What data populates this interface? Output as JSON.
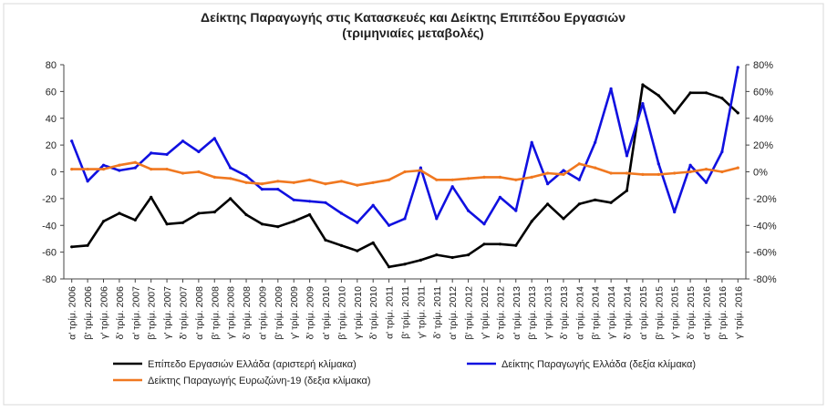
{
  "chart_data": {
    "type": "line",
    "title": "Δείκτης Παραγωγής στις Κατασκευές και Δείκτης Επιπέδου Εργασιών",
    "subtitle": "(τριμηνιαίες μεταβολές)",
    "categories": [
      "α' τρίμ. 2006",
      "β' τρίμ. 2006",
      "γ' τρίμ. 2006",
      "δ' τρίμ. 2006",
      "α' τρίμ. 2007",
      "β' τρίμ. 2007",
      "γ' τρίμ. 2007",
      "δ' τρίμ. 2007",
      "α' τρίμ. 2008",
      "β' τρίμ. 2008",
      "γ' τρίμ. 2008",
      "δ' τρίμ. 2008",
      "α' τρίμ. 2009",
      "β' τρίμ. 2009",
      "γ' τρίμ. 2009",
      "δ' τρίμ. 2009",
      "α' τρίμ. 2010",
      "β' τρίμ. 2010",
      "γ' τρίμ. 2010",
      "δ' τρίμ. 2010",
      "α' τρίμ. 2011",
      "β' τρίμ. 2011",
      "γ' τρίμ. 2011",
      "δ' τρίμ. 2011",
      "α' τρίμ. 2012",
      "β' τρίμ. 2012",
      "γ' τρίμ. 2012",
      "δ' τρίμ. 2012",
      "α' τρίμ. 2013",
      "β' τρίμ. 2013",
      "γ' τρίμ. 2013",
      "δ' τρίμ. 2013",
      "α' τρίμ. 2014",
      "β' τρίμ. 2014",
      "γ' τρίμ. 2014",
      "δ' τρίμ. 2014",
      "α' τρίμ. 2015",
      "β' τρίμ. 2015",
      "γ' τρίμ. 2015",
      "δ' τρίμ. 2015",
      "α' τρίμ. 2016",
      "β' τρίμ. 2016",
      "γ' τρίμ. 2016"
    ],
    "left_axis": {
      "range": [
        -80,
        80
      ],
      "ticks": [
        "80",
        "60",
        "40",
        "20",
        "0",
        "-20",
        "-40",
        "-60",
        "-80"
      ]
    },
    "right_axis": {
      "range": [
        -80,
        80
      ],
      "ticks": [
        "80%",
        "60%",
        "40%",
        "20%",
        "0%",
        "-20%",
        "-40%",
        "-60%",
        "-80%"
      ]
    },
    "grid": false,
    "legend_position": "bottom",
    "series": [
      {
        "name": "Επίπεδο Εργασιών Ελλάδα (αριστερή κλίμακα)",
        "axis": "left",
        "color": "#000000",
        "values": [
          -56,
          -55,
          -37,
          -31,
          -36,
          -19,
          -39,
          -38,
          -31,
          -30,
          -20,
          -32,
          -39,
          -41,
          -37,
          -32,
          -51,
          -55,
          -59,
          -53,
          -71,
          -69,
          -66,
          -62,
          -64,
          -62,
          -54,
          -54,
          -55,
          -37,
          -24,
          -35,
          -24,
          -21,
          -23,
          -14,
          65,
          57,
          44,
          59,
          59,
          55,
          44
        ]
      },
      {
        "name": "Δείκτης Παραγωγής Ελλάδα (δεξία κλίμακα)",
        "axis": "right",
        "color": "#1010e0",
        "values": [
          23,
          -7,
          5,
          1,
          3,
          14,
          13,
          23,
          15,
          25,
          3,
          -3,
          -13,
          -13,
          -21,
          -22,
          -23,
          -31,
          -38,
          -25,
          -40,
          -35,
          3,
          -35,
          -11,
          -29,
          -39,
          -19,
          -29,
          22,
          -9,
          1,
          -6,
          22,
          62,
          12,
          51,
          6,
          -30,
          5,
          -8,
          15,
          78
        ]
      },
      {
        "name": "Δείκτης Παραγωγής Ευρωζώνη-19 (δεξια κλίμακα)",
        "axis": "right",
        "color": "#f07820",
        "values": [
          2,
          2,
          2,
          5,
          7,
          2,
          2,
          -1,
          0,
          -4,
          -5,
          -8,
          -9,
          -7,
          -8,
          -6,
          -9,
          -7,
          -10,
          -8,
          -6,
          0,
          1,
          -6,
          -6,
          -5,
          -4,
          -4,
          -6,
          -4,
          -1,
          -2,
          6,
          3,
          -1,
          -1,
          -2,
          -2,
          -1,
          0,
          2,
          0,
          3
        ]
      }
    ]
  }
}
